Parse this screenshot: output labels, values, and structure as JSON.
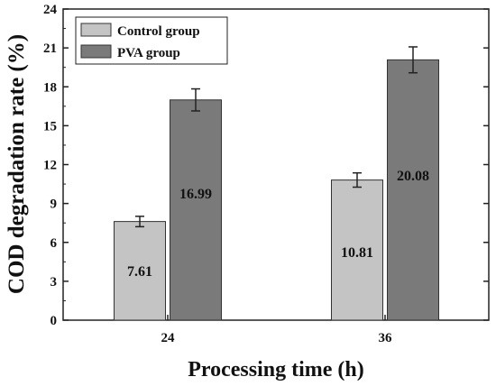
{
  "chart_data": {
    "type": "bar",
    "categories": [
      "24",
      "36"
    ],
    "series": [
      {
        "name": "Control group",
        "values": [
          7.61,
          10.81
        ],
        "errors": [
          0.4,
          0.55
        ],
        "color": "#c4c4c4"
      },
      {
        "name": "PVA group",
        "values": [
          16.99,
          20.08
        ],
        "errors": [
          0.85,
          1.0
        ],
        "color": "#7a7a7a"
      }
    ],
    "xlabel": "Processing time (h)",
    "ylabel": "COD degradation rate (%)",
    "ylim": [
      0,
      24
    ],
    "yticks": [
      "0",
      "3",
      "6",
      "9",
      "12",
      "15",
      "18",
      "21",
      "24"
    ],
    "grid": false,
    "legend_position": "top-left",
    "data_labels": true
  }
}
